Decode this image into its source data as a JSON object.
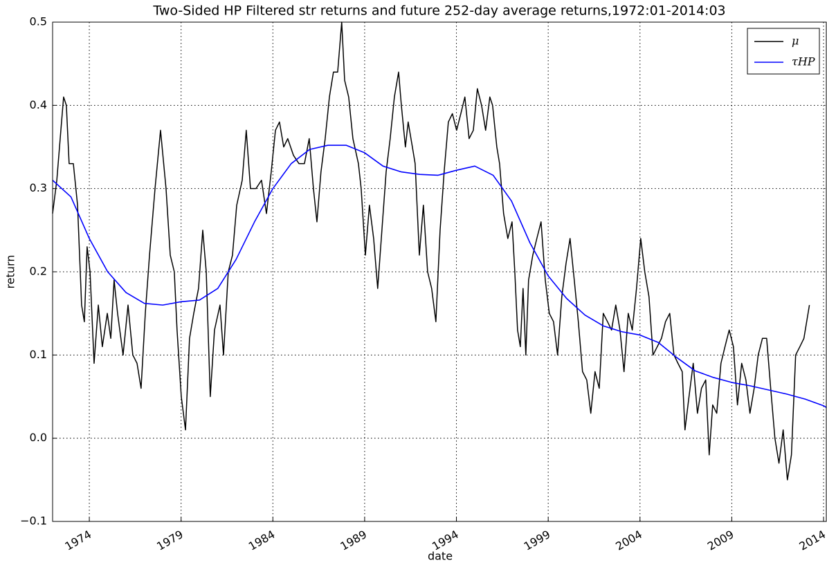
{
  "chart_data": {
    "type": "line",
    "title": "Two-Sided HP Filtered str returns and future 252-day average returns,1972:01-2014:03",
    "x_label": "date",
    "y_label": "return",
    "xlim": [
      1972,
      2014.15
    ],
    "xticks": [
      1974,
      1979,
      1984,
      1989,
      1994,
      1999,
      2004,
      2009,
      2014
    ],
    "ylim": [
      -0.1,
      0.5
    ],
    "yticks": [
      {
        "value": -0.1,
        "label": "−0.1"
      },
      {
        "value": 0,
        "label": "0.0"
      },
      0.1,
      0.2,
      0.3,
      0.4,
      0.5
    ],
    "grid": true,
    "legend": "upper right",
    "series": [
      {
        "name": "μ",
        "color": "#000000",
        "x": [
          1972.0,
          1972.23,
          1972.45,
          1972.6,
          1972.75,
          1972.9,
          1973.13,
          1973.36,
          1973.58,
          1973.73,
          1973.88,
          1974.04,
          1974.26,
          1974.49,
          1974.71,
          1974.98,
          1975.17,
          1975.35,
          1975.54,
          1975.84,
          1976.11,
          1976.37,
          1976.6,
          1976.82,
          1977.05,
          1977.28,
          1977.58,
          1977.88,
          1978.18,
          1978.41,
          1978.63,
          1978.78,
          1979.01,
          1979.24,
          1979.46,
          1979.69,
          1979.95,
          1980.18,
          1980.37,
          1980.59,
          1980.82,
          1981.12,
          1981.31,
          1981.57,
          1981.8,
          1982.03,
          1982.33,
          1982.55,
          1982.78,
          1983.08,
          1983.38,
          1983.65,
          1983.91,
          1984.14,
          1984.36,
          1984.59,
          1984.81,
          1985.12,
          1985.42,
          1985.72,
          1985.98,
          1986.21,
          1986.4,
          1986.62,
          1986.85,
          1987.08,
          1987.3,
          1987.53,
          1987.75,
          1987.91,
          1988.13,
          1988.36,
          1988.66,
          1988.81,
          1989.04,
          1989.26,
          1989.49,
          1989.71,
          1989.94,
          1990.17,
          1990.39,
          1990.62,
          1990.85,
          1991.0,
          1991.22,
          1991.37,
          1991.6,
          1991.75,
          1991.98,
          1992.2,
          1992.43,
          1992.65,
          1992.88,
          1993.11,
          1993.33,
          1993.56,
          1993.78,
          1994.01,
          1994.24,
          1994.46,
          1994.69,
          1994.92,
          1995.14,
          1995.37,
          1995.59,
          1995.82,
          1995.97,
          1996.2,
          1996.35,
          1996.57,
          1996.8,
          1997.03,
          1997.18,
          1997.33,
          1997.48,
          1997.63,
          1997.78,
          1997.93,
          1998.16,
          1998.38,
          1998.61,
          1998.84,
          1999.06,
          1999.29,
          1999.51,
          1999.74,
          1999.97,
          2000.19,
          2000.42,
          2000.64,
          2000.87,
          2001.1,
          2001.32,
          2001.55,
          2001.78,
          2002.0,
          2002.23,
          2002.45,
          2002.68,
          2002.91,
          2003.13,
          2003.36,
          2003.58,
          2003.81,
          2004.04,
          2004.26,
          2004.49,
          2004.71,
          2004.94,
          2005.17,
          2005.39,
          2005.62,
          2005.85,
          2006.07,
          2006.3,
          2006.45,
          2006.67,
          2006.9,
          2007.13,
          2007.35,
          2007.58,
          2007.77,
          2007.96,
          2008.18,
          2008.41,
          2008.63,
          2008.86,
          2009.09,
          2009.31,
          2009.54,
          2009.77,
          2009.99,
          2010.22,
          2010.44,
          2010.67,
          2010.9,
          2011.12,
          2011.35,
          2011.57,
          2011.8,
          2012.03,
          2012.25,
          2012.48,
          2012.71,
          2012.93,
          2013.23
        ],
        "values": [
          0.27,
          0.31,
          0.37,
          0.41,
          0.4,
          0.33,
          0.33,
          0.28,
          0.16,
          0.14,
          0.23,
          0.2,
          0.09,
          0.16,
          0.11,
          0.15,
          0.12,
          0.19,
          0.15,
          0.1,
          0.16,
          0.1,
          0.09,
          0.06,
          0.15,
          0.22,
          0.3,
          0.37,
          0.3,
          0.22,
          0.2,
          0.13,
          0.05,
          0.01,
          0.12,
          0.15,
          0.18,
          0.25,
          0.2,
          0.05,
          0.13,
          0.16,
          0.1,
          0.2,
          0.22,
          0.28,
          0.31,
          0.37,
          0.3,
          0.3,
          0.31,
          0.27,
          0.32,
          0.37,
          0.38,
          0.35,
          0.36,
          0.34,
          0.33,
          0.33,
          0.36,
          0.3,
          0.26,
          0.32,
          0.36,
          0.41,
          0.44,
          0.44,
          0.5,
          0.43,
          0.41,
          0.36,
          0.33,
          0.3,
          0.22,
          0.28,
          0.24,
          0.18,
          0.25,
          0.32,
          0.36,
          0.41,
          0.44,
          0.4,
          0.35,
          0.38,
          0.35,
          0.33,
          0.22,
          0.28,
          0.2,
          0.18,
          0.14,
          0.25,
          0.32,
          0.38,
          0.39,
          0.37,
          0.39,
          0.41,
          0.36,
          0.37,
          0.42,
          0.4,
          0.37,
          0.41,
          0.4,
          0.35,
          0.33,
          0.27,
          0.24,
          0.26,
          0.2,
          0.13,
          0.11,
          0.18,
          0.1,
          0.19,
          0.22,
          0.24,
          0.26,
          0.19,
          0.15,
          0.14,
          0.1,
          0.17,
          0.21,
          0.24,
          0.19,
          0.14,
          0.08,
          0.07,
          0.03,
          0.08,
          0.06,
          0.15,
          0.14,
          0.13,
          0.16,
          0.13,
          0.08,
          0.15,
          0.13,
          0.18,
          0.24,
          0.2,
          0.17,
          0.1,
          0.11,
          0.12,
          0.14,
          0.15,
          0.1,
          0.09,
          0.08,
          0.01,
          0.05,
          0.09,
          0.03,
          0.06,
          0.07,
          -0.02,
          0.04,
          0.03,
          0.09,
          0.11,
          0.13,
          0.11,
          0.04,
          0.09,
          0.07,
          0.03,
          0.06,
          0.1,
          0.12,
          0.12,
          0.06,
          0.0,
          -0.03,
          0.01,
          -0.05,
          -0.02,
          0.1,
          0.11,
          0.12,
          0.16
        ]
      },
      {
        "name": "τHP",
        "color": "#0000ff",
        "x": [
          1972,
          1973,
          1974,
          1975,
          1976,
          1977,
          1978,
          1979,
          1980,
          1981,
          1982,
          1983,
          1984,
          1985,
          1986,
          1987,
          1988,
          1989,
          1990,
          1991,
          1992,
          1993,
          1994,
          1995,
          1996,
          1997,
          1998,
          1999,
          2000,
          2001,
          2002,
          2003,
          2004,
          2005,
          2006,
          2007,
          2008,
          2009,
          2010,
          2011,
          2012,
          2013,
          2014,
          2014.15
        ],
        "values": [
          0.31,
          0.29,
          0.24,
          0.2,
          0.175,
          0.162,
          0.16,
          0.164,
          0.166,
          0.18,
          0.215,
          0.26,
          0.3,
          0.33,
          0.347,
          0.352,
          0.352,
          0.343,
          0.327,
          0.32,
          0.317,
          0.316,
          0.322,
          0.327,
          0.316,
          0.285,
          0.235,
          0.195,
          0.168,
          0.148,
          0.135,
          0.128,
          0.124,
          0.115,
          0.097,
          0.081,
          0.073,
          0.067,
          0.063,
          0.058,
          0.053,
          0.047,
          0.039,
          0.037
        ]
      }
    ]
  }
}
